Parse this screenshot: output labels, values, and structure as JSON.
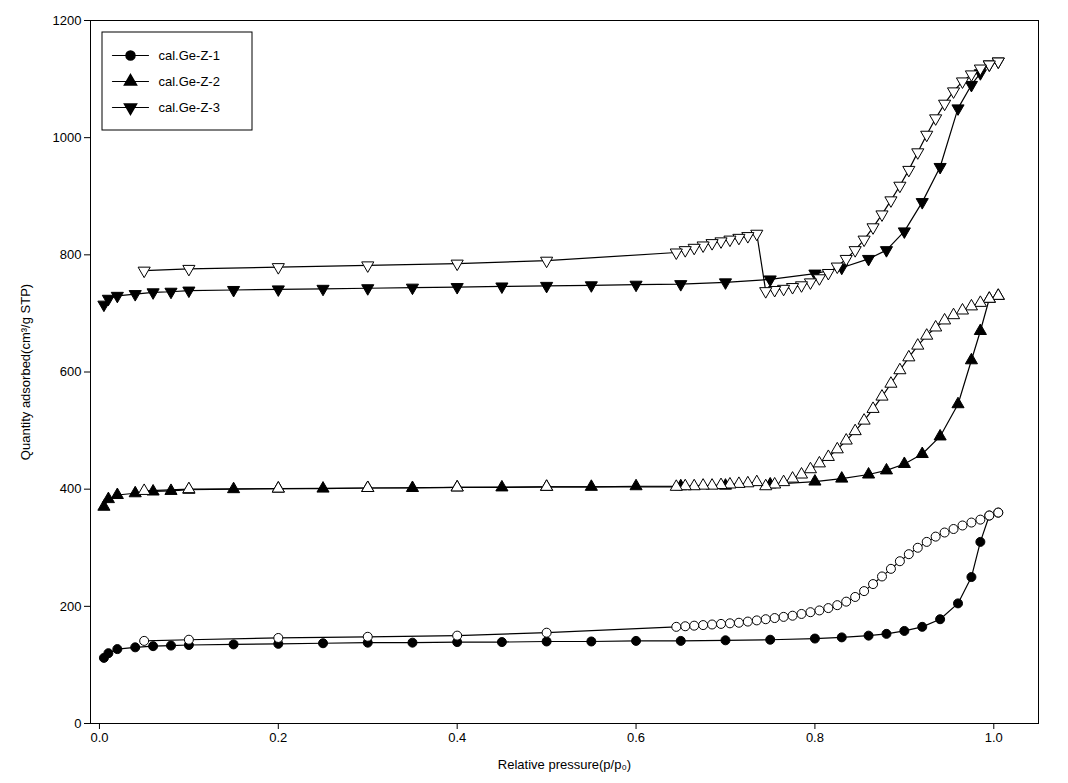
{
  "chart_data": {
    "type": "line",
    "xlabel": "Relative pressure(p/p₀)",
    "ylabel": "Quantity adsorbed(cm³/g STP)",
    "xlim": [
      -0.01,
      1.05
    ],
    "ylim": [
      0,
      1200
    ],
    "xticks": [
      {
        "value": 0.0,
        "label": "0.0"
      },
      0.2,
      0.4,
      0.6,
      0.8,
      {
        "value": 1.0,
        "label": "1.0"
      }
    ],
    "yticks": [
      0,
      200,
      400,
      600,
      800,
      1000,
      1200
    ],
    "grid": false,
    "legend": "upper left",
    "series": [
      {
        "name": "cal.Ge-Z-1",
        "color": "black",
        "marker": "circle",
        "x": [
          0.005,
          0.01,
          0.02,
          0.04,
          0.06,
          0.08,
          0.1,
          0.15,
          0.2,
          0.25,
          0.3,
          0.35,
          0.4,
          0.45,
          0.5,
          0.55,
          0.6,
          0.65,
          0.7,
          0.75,
          0.8,
          0.83,
          0.86,
          0.88,
          0.9,
          0.92,
          0.94,
          0.96,
          0.975,
          0.985,
          0.995,
          1.005
        ],
        "values": [
          112,
          120,
          127,
          130,
          132,
          133,
          134,
          135,
          136,
          137,
          138,
          138,
          139,
          139,
          140,
          140,
          141,
          141,
          142,
          143,
          145,
          147,
          150,
          153,
          158,
          165,
          178,
          205,
          250,
          310,
          355,
          360
        ]
      },
      {
        "color": "black",
        "marker": "circle-open",
        "x": [
          1.005,
          0.995,
          0.985,
          0.975,
          0.965,
          0.955,
          0.945,
          0.935,
          0.925,
          0.915,
          0.905,
          0.895,
          0.885,
          0.875,
          0.865,
          0.855,
          0.845,
          0.835,
          0.825,
          0.815,
          0.805,
          0.795,
          0.785,
          0.775,
          0.765,
          0.755,
          0.745,
          0.735,
          0.725,
          0.715,
          0.705,
          0.695,
          0.685,
          0.675,
          0.665,
          0.655,
          0.645,
          0.5,
          0.4,
          0.3,
          0.2,
          0.1,
          0.05
        ],
        "values": [
          360,
          355,
          348,
          343,
          338,
          332,
          326,
          319,
          310,
          300,
          289,
          277,
          264,
          251,
          238,
          226,
          216,
          208,
          202,
          197,
          193,
          190,
          187,
          184,
          182,
          180,
          178,
          176,
          174,
          172,
          171,
          170,
          169,
          168,
          167,
          166,
          165,
          155,
          150,
          148,
          146,
          143,
          141
        ]
      },
      {
        "name": "cal.Ge-Z-2",
        "color": "black",
        "marker": "triangle-up",
        "x": [
          0.005,
          0.01,
          0.02,
          0.04,
          0.06,
          0.08,
          0.1,
          0.15,
          0.2,
          0.25,
          0.3,
          0.35,
          0.4,
          0.45,
          0.5,
          0.55,
          0.6,
          0.65,
          0.7,
          0.75,
          0.8,
          0.83,
          0.86,
          0.88,
          0.9,
          0.92,
          0.94,
          0.96,
          0.975,
          0.985,
          0.995,
          1.005
        ],
        "values": [
          370,
          383,
          390,
          393,
          396,
          397,
          399,
          400,
          401,
          401,
          402,
          402,
          403,
          403,
          404,
          404,
          405,
          405,
          406,
          408,
          413,
          418,
          425,
          432,
          443,
          460,
          490,
          545,
          620,
          670,
          725,
          730
        ]
      },
      {
        "color": "black",
        "marker": "triangle-up-open",
        "x": [
          1.005,
          0.995,
          0.985,
          0.975,
          0.965,
          0.955,
          0.945,
          0.935,
          0.925,
          0.915,
          0.905,
          0.895,
          0.885,
          0.875,
          0.865,
          0.855,
          0.845,
          0.835,
          0.825,
          0.815,
          0.805,
          0.795,
          0.785,
          0.775,
          0.765,
          0.755,
          0.745,
          0.735,
          0.725,
          0.715,
          0.705,
          0.695,
          0.685,
          0.675,
          0.665,
          0.655,
          0.645,
          0.5,
          0.4,
          0.3,
          0.2,
          0.1,
          0.05
        ],
        "values": [
          730,
          725,
          718,
          712,
          705,
          697,
          688,
          676,
          662,
          645,
          625,
          603,
          580,
          558,
          537,
          517,
          499,
          483,
          468,
          455,
          444,
          434,
          425,
          418,
          412,
          408,
          405,
          412,
          410,
          409,
          408,
          407,
          406,
          406,
          405,
          405,
          404,
          404,
          403,
          402,
          401,
          400,
          397
        ]
      },
      {
        "name": "cal.Ge-Z-3",
        "color": "black",
        "marker": "triangle-down",
        "x": [
          0.005,
          0.01,
          0.02,
          0.04,
          0.06,
          0.08,
          0.1,
          0.15,
          0.2,
          0.25,
          0.3,
          0.35,
          0.4,
          0.45,
          0.5,
          0.55,
          0.6,
          0.65,
          0.7,
          0.75,
          0.8,
          0.83,
          0.86,
          0.88,
          0.9,
          0.92,
          0.94,
          0.96,
          0.975,
          0.985,
          0.995,
          1.005
        ],
        "values": [
          715,
          725,
          730,
          733,
          736,
          737,
          739,
          740,
          741,
          742,
          743,
          744,
          745,
          746,
          747,
          748,
          749,
          750,
          753,
          758,
          768,
          778,
          793,
          808,
          840,
          890,
          950,
          1050,
          1090,
          1110,
          1125,
          1130
        ]
      },
      {
        "color": "black",
        "marker": "triangle-down-open",
        "x": [
          1.005,
          0.995,
          0.985,
          0.975,
          0.965,
          0.955,
          0.945,
          0.935,
          0.925,
          0.915,
          0.905,
          0.895,
          0.885,
          0.875,
          0.865,
          0.855,
          0.845,
          0.835,
          0.825,
          0.815,
          0.805,
          0.795,
          0.785,
          0.775,
          0.765,
          0.755,
          0.745,
          0.735,
          0.725,
          0.715,
          0.705,
          0.695,
          0.685,
          0.675,
          0.665,
          0.655,
          0.645,
          0.5,
          0.4,
          0.3,
          0.2,
          0.1,
          0.05
        ],
        "values": [
          1130,
          1125,
          1118,
          1108,
          1096,
          1079,
          1058,
          1033,
          1005,
          975,
          945,
          918,
          893,
          869,
          847,
          826,
          808,
          793,
          780,
          769,
          760,
          753,
          748,
          745,
          742,
          740,
          738,
          836,
          832,
          829,
          826,
          823,
          820,
          816,
          812,
          808,
          804,
          790,
          785,
          782,
          779,
          776,
          773
        ]
      }
    ]
  }
}
